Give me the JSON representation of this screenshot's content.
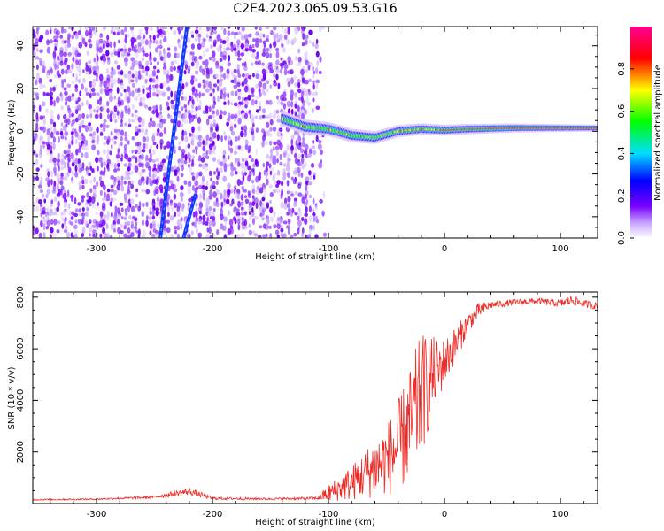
{
  "figure_title": "C2E4.2023.065.09.53.G16",
  "colors": {
    "snr_line": "#ee2a24",
    "background": "#ffffff",
    "axis": "#000000"
  },
  "chart_data": [
    {
      "type": "heatmap",
      "xlabel": "Height of straight line (km)",
      "ylabel": "Frequency (Hz)",
      "xlim": [
        -355,
        132
      ],
      "ylim": [
        -50,
        49
      ],
      "xticks": [
        -300,
        -200,
        -100,
        0,
        100
      ],
      "yticks": [
        -40,
        -20,
        0,
        20,
        40
      ],
      "colorbar": {
        "label": "Normalized spectral amplitude",
        "range": [
          0,
          1
        ],
        "ticks": [
          "0.0",
          "0.2",
          "0.4",
          "0.6",
          "0.8"
        ]
      },
      "features": [
        {
          "name": "noise-region",
          "x_range": [
            -355,
            -118
          ],
          "y_range": [
            -50,
            49
          ]
        },
        {
          "name": "streak-1",
          "from": [
            -245,
            -50
          ],
          "to": [
            -222,
            49
          ]
        },
        {
          "name": "streak-2",
          "from": [
            -225,
            -50
          ],
          "to": [
            -215,
            -30
          ]
        },
        {
          "name": "signal-track",
          "x": [
            -140,
            -120,
            -100,
            -80,
            -60,
            -40,
            -20,
            0,
            20,
            60,
            100,
            132
          ],
          "y": [
            6,
            2,
            1,
            -2,
            -3,
            0,
            1,
            0.5,
            1,
            1.5,
            1.5,
            1.5
          ]
        }
      ]
    },
    {
      "type": "line",
      "xlabel": "Height of straight line (km)",
      "ylabel": "SNR (10 * v/v)",
      "xlim": [
        -355,
        132
      ],
      "ylim": [
        0,
        8200
      ],
      "xticks": [
        -300,
        -200,
        -100,
        0,
        100
      ],
      "yticks": [
        2000,
        4000,
        6000,
        8000
      ],
      "series": [
        {
          "x": [
            -355,
            -300,
            -250,
            -220,
            -200,
            -150,
            -110,
            -100,
            -90,
            -80,
            -70,
            -60,
            -50,
            -40,
            -30,
            -25,
            -20,
            -15,
            -10,
            -5,
            0,
            10,
            20,
            30,
            40,
            60,
            80,
            100,
            110,
            120,
            132
          ],
          "y": [
            150,
            170,
            250,
            480,
            200,
            180,
            200,
            400,
            600,
            800,
            1100,
            1400,
            1700,
            2200,
            3000,
            3600,
            4200,
            4600,
            5000,
            5200,
            5500,
            6200,
            7000,
            7500,
            7700,
            7800,
            7850,
            7750,
            7900,
            7750,
            7650
          ],
          "fluctuation": [
            30,
            30,
            60,
            150,
            60,
            40,
            60,
            350,
            500,
            700,
            900,
            1200,
            1400,
            1800,
            2200,
            2400,
            2400,
            2000,
            1500,
            1200,
            900,
            700,
            400,
            300,
            150,
            120,
            120,
            150,
            200,
            150,
            150
          ]
        }
      ]
    }
  ]
}
